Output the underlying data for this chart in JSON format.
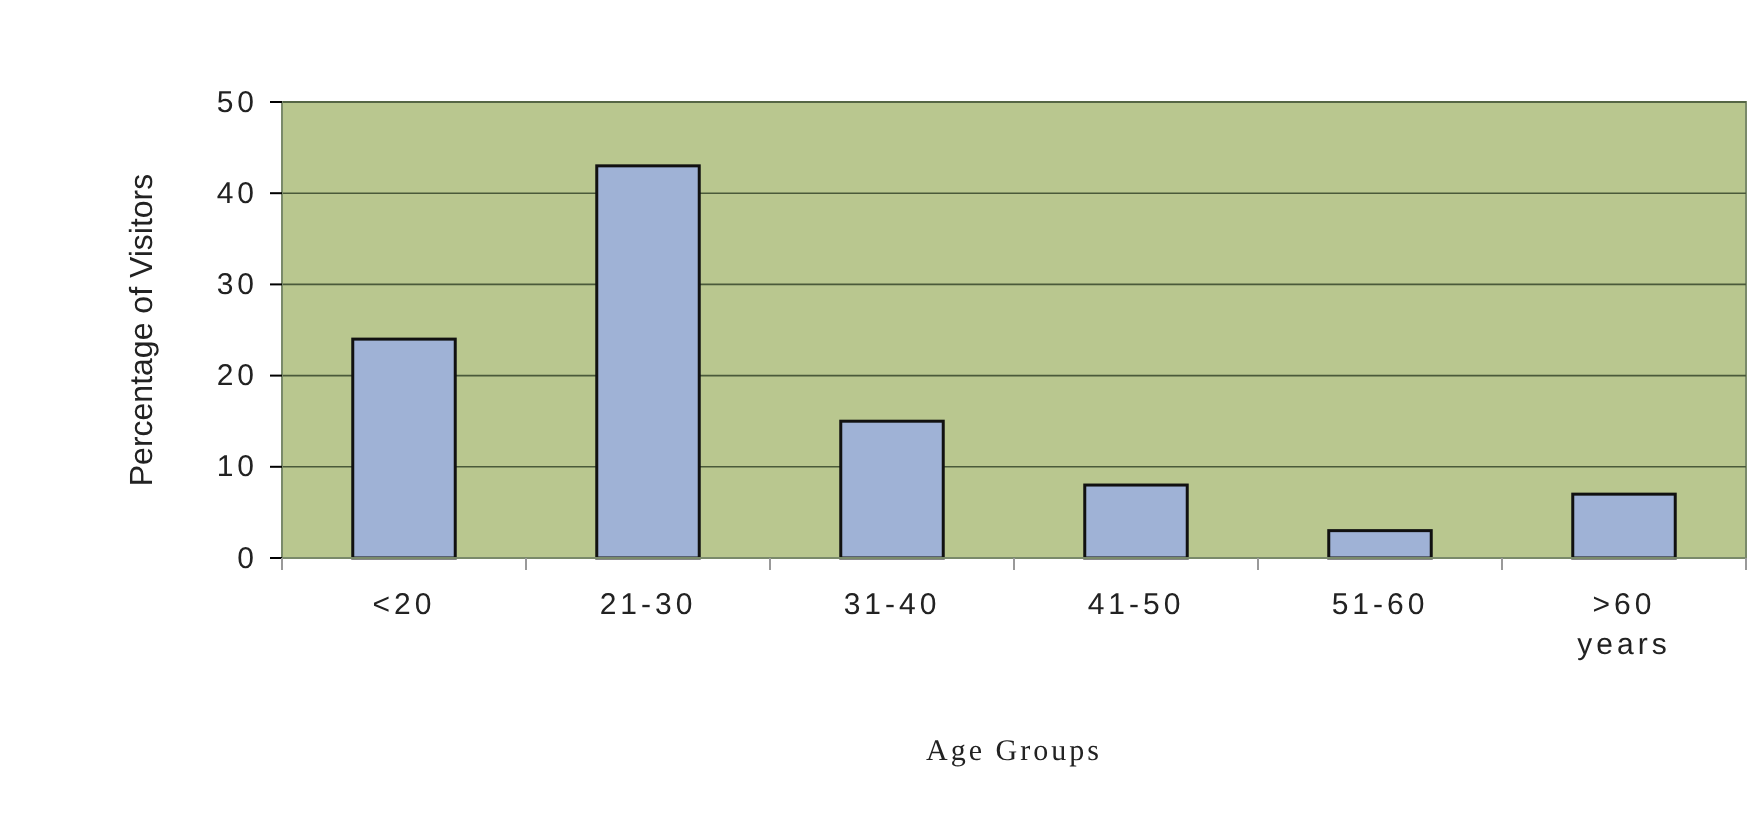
{
  "chart_data": {
    "type": "bar",
    "xlabel": "Age Groups",
    "ylabel": "Percentage of Visitors",
    "categories": [
      "<20",
      "21-30",
      "31-40",
      "41-50",
      "51-60",
      ">60 years"
    ],
    "values": [
      24,
      43,
      15,
      8,
      3,
      7
    ],
    "color": "#9fb2d6",
    "ylim": [
      0,
      50
    ],
    "yticks": [
      0,
      10,
      20,
      30,
      40,
      50
    ],
    "grid": "y"
  }
}
